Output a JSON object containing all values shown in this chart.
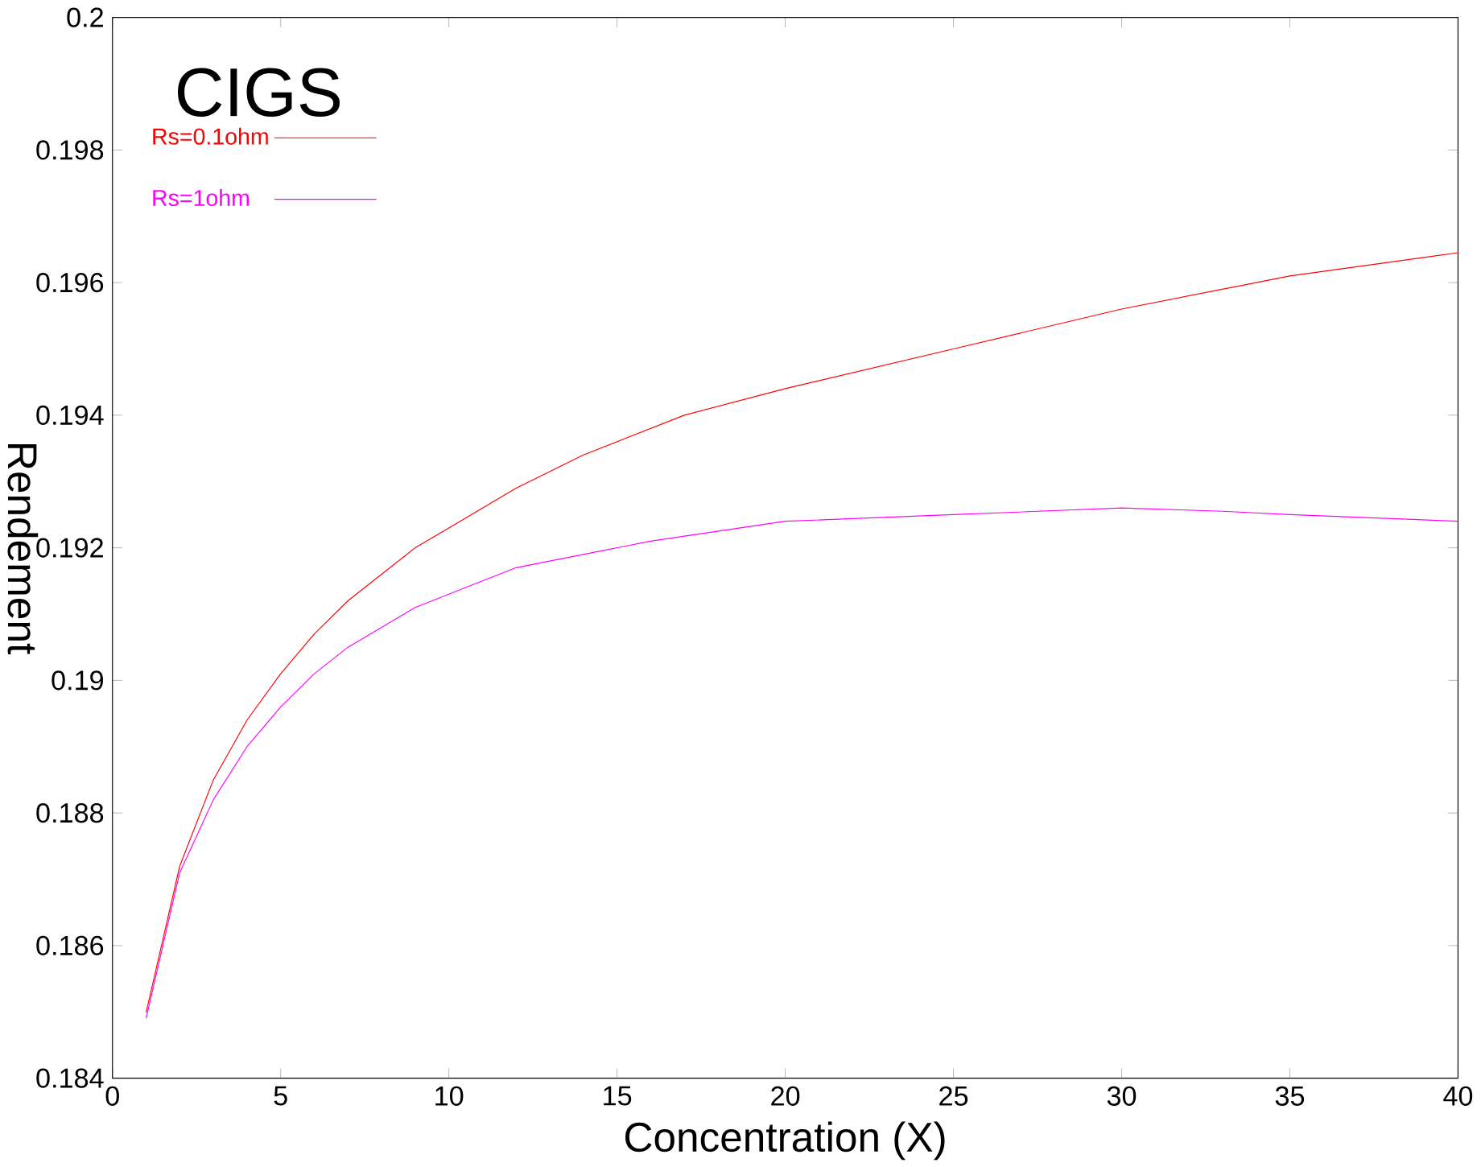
{
  "chart_data": {
    "type": "line",
    "xlabel": "Concentration (X)",
    "ylabel": "Rendement",
    "annotations": [
      "CIGS"
    ],
    "legend": "top left",
    "grid": false,
    "marker": "none",
    "line_style": "solid",
    "xlim": [
      0,
      40
    ],
    "ylim": [
      0.184,
      0.2
    ],
    "xticks": [
      0,
      5,
      10,
      15,
      20,
      25,
      30,
      35,
      40
    ],
    "yticks": [
      0.184,
      0.186,
      0.188,
      0.19,
      0.192,
      0.194,
      0.196,
      0.198,
      0.2
    ],
    "series": [
      {
        "name": "Rs=0.1ohm",
        "color": "#ff0000",
        "x": [
          1,
          2,
          3,
          4,
          5,
          6,
          7,
          8,
          9,
          10,
          12,
          14,
          15,
          17,
          20,
          25,
          30,
          35,
          40
        ],
        "values": [
          0.18499,
          0.1872,
          0.1885,
          0.1894,
          0.1901,
          0.1907,
          0.1912,
          0.1916,
          0.192,
          0.1923,
          0.1929,
          0.1934,
          0.1936,
          0.194,
          0.1944,
          0.195,
          0.1956,
          0.1961,
          0.19645
        ]
      },
      {
        "name": "Rs=1ohm",
        "color": "#ff00ff",
        "x": [
          1,
          2,
          3,
          4,
          5,
          6,
          7,
          8,
          9,
          10,
          12,
          14,
          16,
          20,
          25,
          30,
          33,
          35,
          40
        ],
        "values": [
          0.1849,
          0.1871,
          0.1882,
          0.189,
          0.1896,
          0.1901,
          0.1905,
          0.1908,
          0.1911,
          0.1913,
          0.1917,
          0.1919,
          0.1921,
          0.1924,
          0.1925,
          0.1926,
          0.19255,
          0.1925,
          0.1924
        ]
      }
    ]
  }
}
